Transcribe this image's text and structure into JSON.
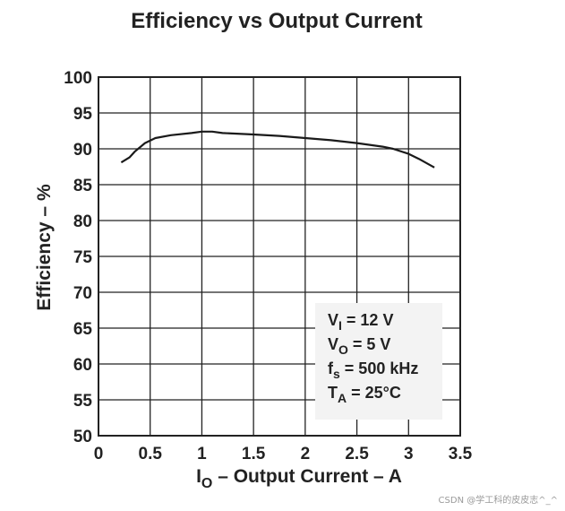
{
  "chart_data": {
    "type": "line",
    "title": "Efficiency vs Output Current",
    "xlabel": {
      "main": "I",
      "sub": "O",
      "rest": " – Output Current – A"
    },
    "ylabel": "Efficiency – %",
    "xlim": [
      0,
      3.5
    ],
    "ylim": [
      50,
      100
    ],
    "x_ticks": [
      "0",
      "0.5",
      "1",
      "1.5",
      "2",
      "2.5",
      "3",
      "3.5"
    ],
    "y_ticks": [
      "100",
      "95",
      "90",
      "85",
      "80",
      "75",
      "70",
      "65",
      "60",
      "55",
      "50"
    ],
    "grid": true,
    "series": [
      {
        "x": [
          0.22,
          0.3,
          0.35,
          0.45,
          0.55,
          0.7,
          0.9,
          1.0,
          1.1,
          1.2,
          1.5,
          1.75,
          2.0,
          2.25,
          2.5,
          2.75,
          2.85,
          3.0,
          3.1,
          3.25
        ],
        "y": [
          88.1,
          88.8,
          89.6,
          90.8,
          91.5,
          91.9,
          92.2,
          92.4,
          92.4,
          92.2,
          92.0,
          91.8,
          91.5,
          91.2,
          90.8,
          90.3,
          90.0,
          89.3,
          88.6,
          87.4
        ]
      }
    ],
    "conditions_box": {
      "position": "bottom-right",
      "lines": [
        {
          "main": "V",
          "sub": "I",
          "rest": " = 12 V"
        },
        {
          "main": "V",
          "sub": "O",
          "rest": " = 5 V"
        },
        {
          "main": "f",
          "sub": "s",
          "rest": " = 500 kHz"
        },
        {
          "main": "T",
          "sub": "A",
          "rest": " = 25°C"
        }
      ]
    }
  },
  "watermark": "CSDN @学工科的皮皮志^_^",
  "colors": {
    "line": "#1a1a1a",
    "grid": "#222222",
    "text": "#222222",
    "box_bg": "#f3f3f3"
  }
}
